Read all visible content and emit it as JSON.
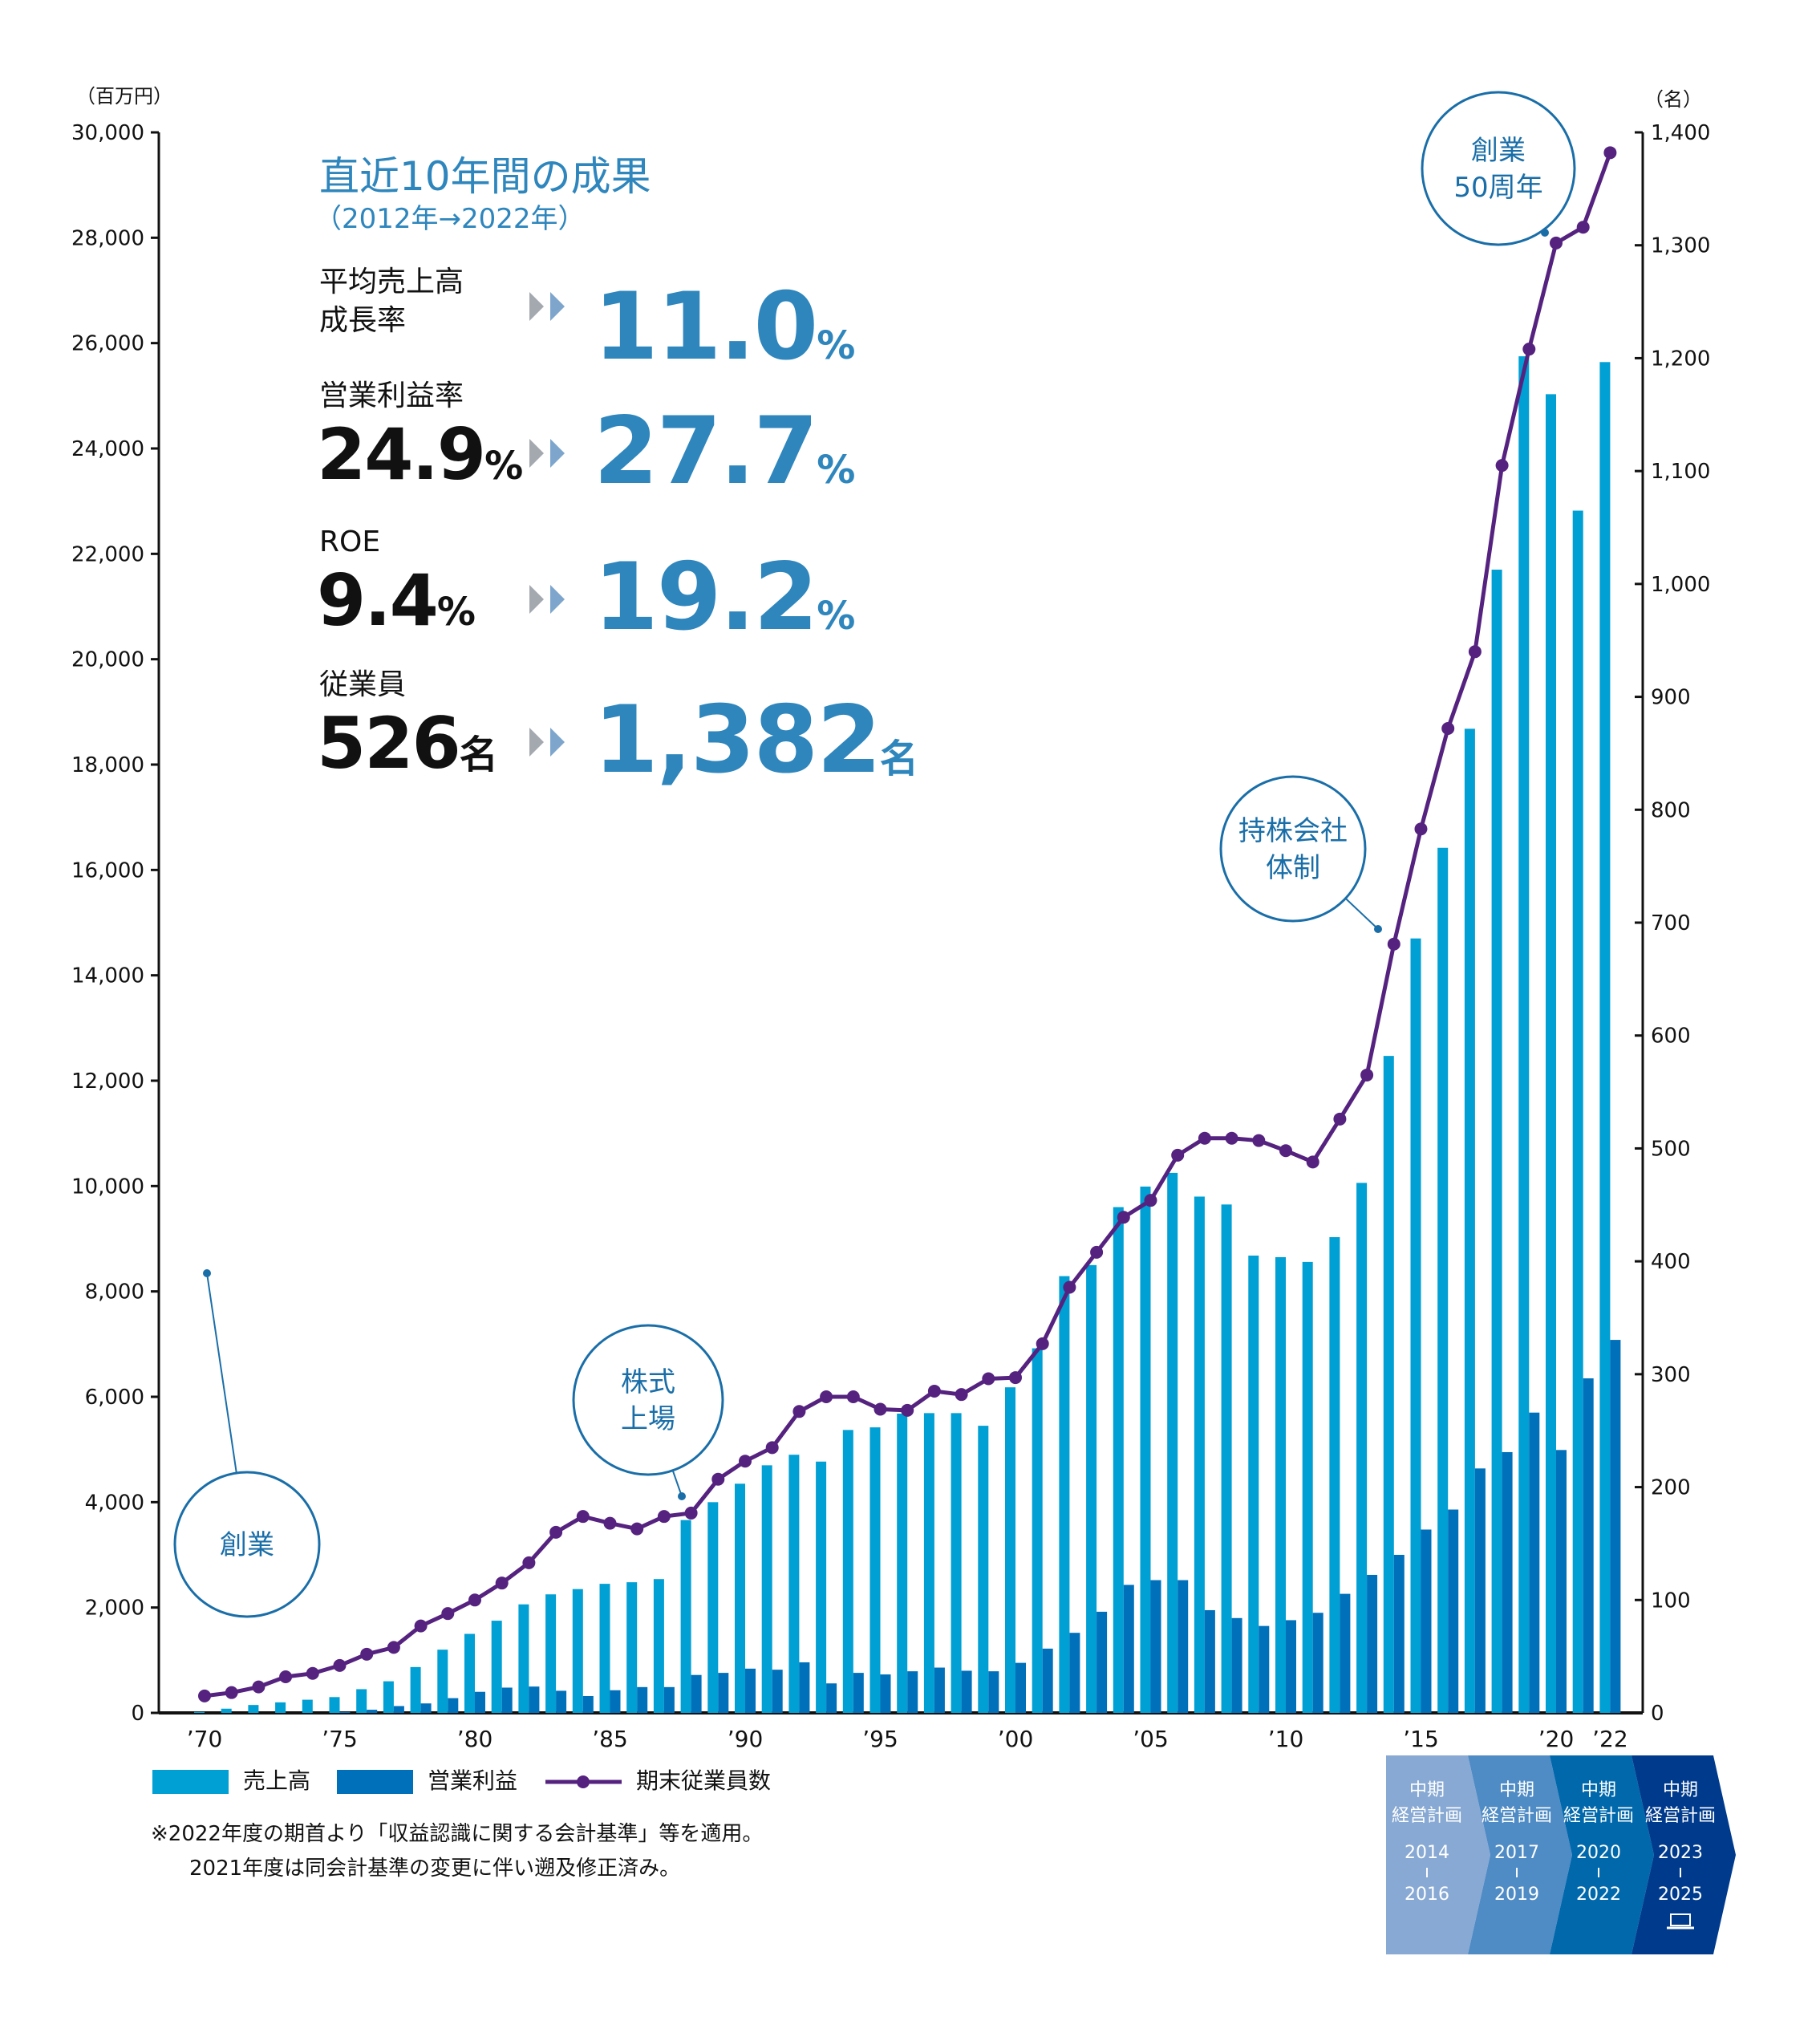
{
  "headline": {
    "title": "直近10年間の成果",
    "period": "（2012年→2022年）",
    "metrics": [
      {
        "label_lines": [
          "平均売上高",
          "成長率"
        ],
        "before": "",
        "before_unit": "",
        "after": "11.0",
        "after_unit": "%"
      },
      {
        "label_lines": [
          "営業利益率"
        ],
        "before": "24.9",
        "before_unit": "%",
        "after": "27.7",
        "after_unit": "%"
      },
      {
        "label_lines": [
          "ROE"
        ],
        "before": "9.4",
        "before_unit": "%",
        "after": "19.2",
        "after_unit": "%"
      },
      {
        "label_lines": [
          "従業員"
        ],
        "before": "526",
        "before_unit": "名",
        "after": "1,382",
        "after_unit": "名"
      }
    ]
  },
  "callouts": [
    {
      "text_lines": [
        "創業"
      ],
      "year": 1970
    },
    {
      "text_lines": [
        "株式",
        "上場"
      ],
      "year": 1988
    },
    {
      "text_lines": [
        "持株会社",
        "体制"
      ],
      "year": 2014
    },
    {
      "text_lines": [
        "創業",
        "50周年"
      ],
      "year": 2020
    }
  ],
  "legend": {
    "sales": "売上高",
    "profit": "営業利益",
    "employees": "期末従業員数"
  },
  "notes": [
    "※2022年度の期首より「収益認識に関する会計基準」等を適用。",
    "2021年度は同会計基準の変更に伴い遡及修正済み。"
  ],
  "plans": [
    {
      "line1": "中期",
      "line2": "経営計画",
      "start": "2014",
      "end": "2016",
      "color": "#88a9d3"
    },
    {
      "line1": "中期",
      "line2": "経営計画",
      "start": "2017",
      "end": "2019",
      "color": "#4f8bc4"
    },
    {
      "line1": "中期",
      "line2": "経営計画",
      "start": "2020",
      "end": "2022",
      "color": "#0068ab"
    },
    {
      "line1": "中期",
      "line2": "経営計画",
      "start": "2023",
      "end": "2025",
      "color": "#003a8c",
      "icon": "laptop-icon"
    }
  ],
  "colors": {
    "sales": "#009fd4",
    "profit": "#0070bb",
    "employees": "#55237f",
    "accent": "#2e86bd",
    "callout": "#1a6ea8"
  },
  "chart_data": {
    "type": "bar",
    "title": "",
    "x": [
      1970,
      1971,
      1972,
      1973,
      1974,
      1975,
      1976,
      1977,
      1978,
      1979,
      1980,
      1981,
      1982,
      1983,
      1984,
      1985,
      1986,
      1987,
      1988,
      1989,
      1990,
      1991,
      1992,
      1993,
      1994,
      1995,
      1996,
      1997,
      1998,
      1999,
      2000,
      2001,
      2002,
      2003,
      2004,
      2005,
      2006,
      2007,
      2008,
      2009,
      2010,
      2011,
      2012,
      2013,
      2014,
      2015,
      2016,
      2017,
      2018,
      2019,
      2020,
      2021,
      2022
    ],
    "xtick_labels": [
      "’70",
      "’75",
      "’80",
      "’85",
      "’90",
      "’95",
      "’00",
      "’05",
      "’10",
      "’15",
      "’20",
      "’22"
    ],
    "xtick_years": [
      1970,
      1975,
      1980,
      1985,
      1990,
      1995,
      2000,
      2005,
      2010,
      2015,
      2020,
      2022
    ],
    "left_axis": {
      "label": "（百万円）",
      "ylim": [
        0,
        30000
      ],
      "ticks": [
        0,
        2000,
        4000,
        6000,
        8000,
        10000,
        12000,
        14000,
        16000,
        18000,
        20000,
        22000,
        24000,
        26000,
        28000,
        30000
      ],
      "tick_labels": [
        "0",
        "2,000",
        "4,000",
        "6,000",
        "8,000",
        "10,000",
        "12,000",
        "14,000",
        "16,000",
        "18,000",
        "20,000",
        "22,000",
        "24,000",
        "26,000",
        "28,000",
        "30,000"
      ]
    },
    "right_axis": {
      "label": "（名）",
      "ylim": [
        0,
        1400
      ],
      "ticks": [
        0,
        100,
        200,
        300,
        400,
        500,
        600,
        700,
        800,
        900,
        1000,
        1100,
        1200,
        1300,
        1400
      ],
      "tick_labels": [
        "0",
        "100",
        "200",
        "300",
        "400",
        "500",
        "600",
        "700",
        "800",
        "900",
        "1,000",
        "1,100",
        "1,200",
        "1,300",
        "1,400"
      ]
    },
    "series": [
      {
        "name": "売上高",
        "type": "bar",
        "axis": "left",
        "values": [
          20,
          80,
          150,
          200,
          250,
          300,
          450,
          600,
          870,
          1200,
          1500,
          1750,
          2060,
          2250,
          2350,
          2450,
          2480,
          2540,
          3660,
          4000,
          4350,
          4700,
          4900,
          4770,
          5370,
          5420,
          5680,
          5690,
          5690,
          5450,
          6180,
          6920,
          8290,
          8500,
          9600,
          9990,
          10250,
          9800,
          9650,
          8680,
          8650,
          8560,
          9030,
          10060,
          12470,
          14700,
          16420,
          18680,
          21700,
          25750,
          25030,
          22820,
          25640
        ]
      },
      {
        "name": "営業利益",
        "type": "bar",
        "axis": "left",
        "values": [
          0,
          0,
          0,
          0,
          0,
          20,
          60,
          130,
          180,
          280,
          400,
          480,
          500,
          420,
          320,
          430,
          490,
          490,
          720,
          760,
          840,
          820,
          960,
          560,
          760,
          730,
          790,
          860,
          800,
          790,
          950,
          1220,
          1520,
          1920,
          2430,
          2520,
          2520,
          1950,
          1800,
          1650,
          1760,
          1900,
          2260,
          2620,
          3000,
          3480,
          3860,
          4640,
          4950,
          5700,
          4990,
          6350,
          7080
        ]
      },
      {
        "name": "期末従業員数",
        "type": "line",
        "axis": "right",
        "values": [
          15,
          18,
          23,
          32,
          35,
          42,
          52,
          58,
          77,
          88,
          100,
          115,
          133,
          160,
          174,
          168,
          163,
          174,
          177,
          207,
          223,
          235,
          267,
          280,
          280,
          269,
          268,
          285,
          282,
          296,
          297,
          327,
          377,
          408,
          439,
          454,
          494,
          509,
          509,
          507,
          498,
          488,
          526,
          565,
          681,
          783,
          872,
          940,
          1105,
          1208,
          1302,
          1316,
          1382
        ]
      }
    ],
    "legend_position": "bottom-left",
    "grid": false
  }
}
